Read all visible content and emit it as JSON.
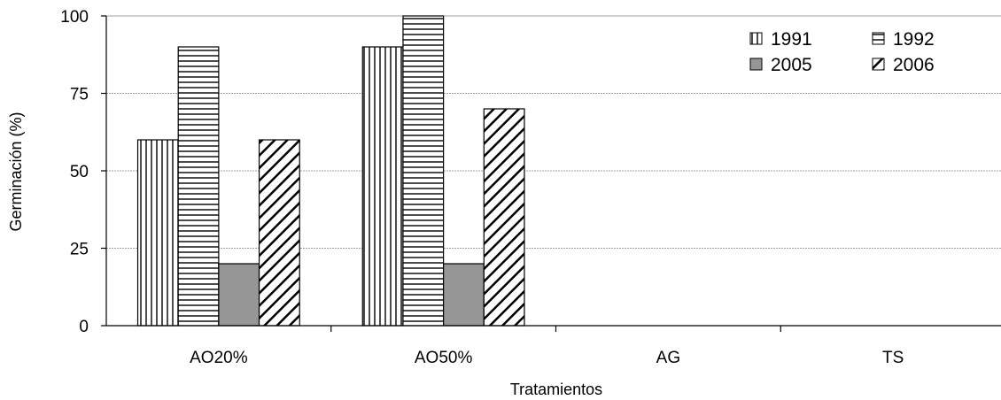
{
  "chart_data": {
    "type": "bar",
    "title": "",
    "xlabel": "Tratamientos",
    "ylabel": "Germinación (%)",
    "ylim": [
      0,
      100
    ],
    "yticks": [
      "0",
      "25",
      "50",
      "75",
      "100"
    ],
    "grid": true,
    "legend_position": "top-right",
    "categories": [
      "AO20%",
      "AO50%",
      "AG",
      "TS"
    ],
    "series": [
      {
        "name": "1991",
        "values": [
          60,
          90,
          0,
          0
        ],
        "pattern": "vertical-lines",
        "color": "#ffffff"
      },
      {
        "name": "1992",
        "values": [
          90,
          100,
          0,
          0
        ],
        "pattern": "horizontal-lines",
        "color": "#ffffff"
      },
      {
        "name": "2005",
        "values": [
          20,
          20,
          0,
          0
        ],
        "pattern": "solid",
        "color": "#969696"
      },
      {
        "name": "2006",
        "values": [
          60,
          70,
          0,
          0
        ],
        "pattern": "diagonal-lines",
        "color": "#ffffff"
      }
    ]
  }
}
